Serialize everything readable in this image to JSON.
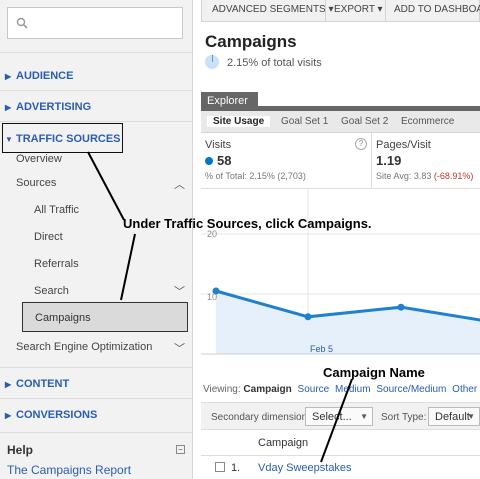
{
  "sidebar": {
    "sections": {
      "audience": "AUDIENCE",
      "advertising": "ADVERTISING",
      "traffic_sources": "TRAFFIC SOURCES",
      "content": "CONTENT",
      "conversions": "CONVERSIONS"
    },
    "traffic_items": {
      "overview": "Overview",
      "sources": "Sources",
      "all_traffic": "All Traffic",
      "direct": "Direct",
      "referrals": "Referrals",
      "search": "Search",
      "campaigns": "Campaigns",
      "seo": "Search Engine Optimization"
    },
    "help_title": "Help",
    "help_link": "The Campaigns Report"
  },
  "toolbar": {
    "advanced_segments": "ADVANCED SEGMENTS",
    "export": "EXPORT",
    "add_to_dashboard": "ADD TO DASHBOARD"
  },
  "page": {
    "title": "Campaigns",
    "visits_pct": "2.15% of total visits"
  },
  "explorer": {
    "tab": "Explorer",
    "subtabs": [
      "Site Usage",
      "Goal Set 1",
      "Goal Set 2",
      "Ecommerce"
    ]
  },
  "metrics": {
    "visits": {
      "label": "Visits",
      "value": "58",
      "sub": "% of Total: 2.15% (2,703)"
    },
    "pages_visit": {
      "label": "Pages/Visit",
      "value": "1.19",
      "sub_prefix": "Site Avg: 3.83 ",
      "sub_delta": "(-68.91%)"
    }
  },
  "chart_data": {
    "type": "line",
    "y_ticks": [
      "20",
      "10"
    ],
    "x_labels": [
      "Feb 5"
    ],
    "series": [
      {
        "values": [
          10.5,
          6.2,
          7.8,
          5.5
        ]
      }
    ],
    "ylim": [
      0,
      20
    ],
    "color": "#1f80d0"
  },
  "viewing": {
    "label": "Viewing:",
    "current": "Campaign",
    "options": [
      "Source",
      "Medium",
      "Source/Medium",
      "Other"
    ]
  },
  "secondary": {
    "label": "Secondary dimension:",
    "select": "Select...",
    "sort_label": "Sort Type:",
    "sort_value": "Default"
  },
  "table": {
    "header": "Campaign",
    "rows": [
      {
        "num": "1.",
        "name": "Vday Sweepstakes"
      }
    ]
  },
  "annotations": {
    "callout1": "Under Traffic Sources, click Campaigns.",
    "callout2": "Campaign Name"
  },
  "colors": {
    "link": "#2a5db0",
    "accent": "#1f80d0",
    "negative": "#c0392b"
  }
}
